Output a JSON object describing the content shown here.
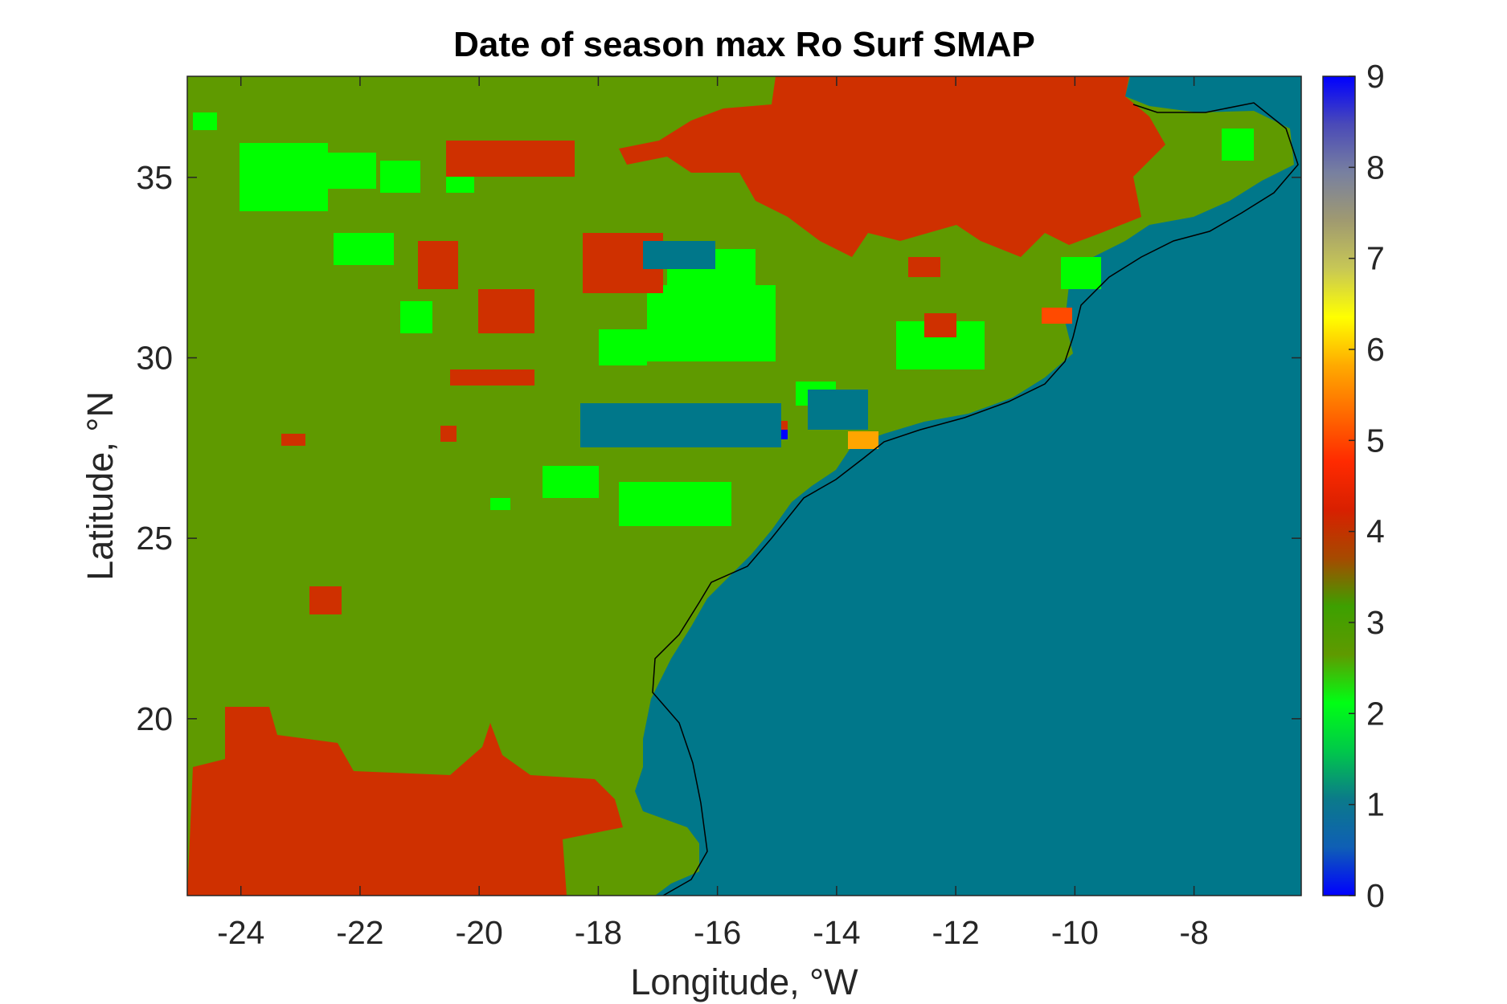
{
  "chart_data": {
    "type": "heatmap",
    "title": "Date of season max Ro Surf SMAP",
    "xlabel": "Longitude, °W",
    "ylabel": "Latitude, °N",
    "xlim": [
      -24.9,
      -6.2
    ],
    "ylim": [
      15.1,
      37.8
    ],
    "x_ticks": [
      -24,
      -22,
      -20,
      -18,
      -16,
      -14,
      -12,
      -10,
      -8
    ],
    "x_tick_labels": [
      "-24",
      "-22",
      "-20",
      "-18",
      "-16",
      "-14",
      "-12",
      "-10",
      "-8"
    ],
    "y_ticks": [
      20,
      25,
      30,
      35
    ],
    "y_tick_labels": [
      "20",
      "25",
      "30",
      "35"
    ],
    "colorbar": {
      "range": [
        0,
        9
      ],
      "ticks": [
        0,
        1,
        2,
        3,
        4,
        5,
        6,
        7,
        8,
        9
      ],
      "tick_labels": [
        "0",
        "1",
        "2",
        "3",
        "4",
        "5",
        "6",
        "7",
        "8",
        "9"
      ],
      "colormap": [
        "#0000ff",
        "#0f5fb5",
        "#0b7a8a",
        "#00c84a",
        "#00ff14",
        "#5f9a00",
        "#3da000",
        "#a64a00",
        "#d82000",
        "#ff2a00",
        "#ff6a00",
        "#ffaa00",
        "#ffff00",
        "#c8c855",
        "#a09a70",
        "#7880a0",
        "#4a4ab8",
        "#0000ff"
      ]
    },
    "categories": [
      {
        "value": 1,
        "label": "1",
        "color": "#00778a"
      },
      {
        "value": 2,
        "label": "2",
        "color": "#00ff00"
      },
      {
        "value": 3,
        "label": "3",
        "color": "#5f9a00"
      },
      {
        "value": 4,
        "label": "4",
        "color": "#cf3000"
      },
      {
        "value": 5,
        "label": "5",
        "color": "#ff4a00"
      },
      {
        "value": 6,
        "label": "6",
        "color": "#ffa500"
      }
    ],
    "regions": [
      {
        "name": "ocean",
        "value": 1
      },
      {
        "name": "land_majority",
        "value": 3
      },
      {
        "name": "patches_value_2",
        "value": 2
      },
      {
        "name": "patches_value_4",
        "value": 4
      }
    ],
    "grid": false
  }
}
